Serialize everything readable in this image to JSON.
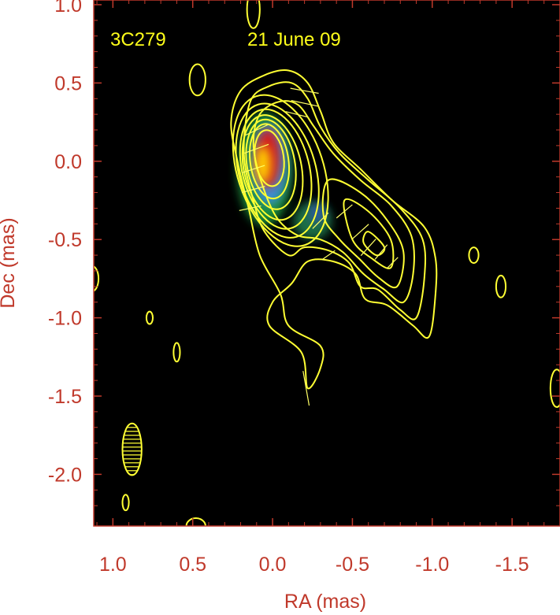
{
  "chart_data": {
    "type": "contour_map",
    "source_name": "3C279",
    "epoch": "21 June 09",
    "xlabel": "RA (mas)",
    "ylabel": "Dec (mas)",
    "xlim": [
      1.12,
      -1.8
    ],
    "ylim": [
      -2.33,
      1.03
    ],
    "xticks": [
      1.0,
      0.5,
      0.0,
      -0.5,
      -1.0,
      -1.5
    ],
    "xtick_labels": [
      "1.0",
      "0.5",
      "0.0",
      "-0.5",
      "-1.0",
      "-1.5"
    ],
    "yticks": [
      1.0,
      0.5,
      0.0,
      -0.5,
      -1.0,
      -1.5,
      -2.0
    ],
    "ytick_labels": [
      "1.0",
      "0.5",
      "0.0",
      "-0.5",
      "-1.0",
      "-1.5",
      "-2.0"
    ],
    "colors": {
      "background": "#000000",
      "axes": "#c0392b",
      "contours": "#ffff33",
      "annotation": "#ffff1a"
    },
    "intensity_blobs": [
      {
        "ra": 0.05,
        "dec": -0.05,
        "sx": 0.17,
        "sy": 0.36,
        "color": "#1a8c3a"
      },
      {
        "ra": -0.25,
        "dec": -0.38,
        "sx": 0.12,
        "sy": 0.12,
        "color": "#1a6e44"
      },
      {
        "ra": -0.28,
        "dec": -0.33,
        "sx": 0.05,
        "sy": 0.06,
        "color": "#2f56a8"
      },
      {
        "ra": 0.02,
        "dec": -0.02,
        "sx": 0.11,
        "sy": 0.26,
        "color": "#3a8fd6"
      },
      {
        "ra": 0.03,
        "dec": 0.02,
        "sx": 0.08,
        "sy": 0.19,
        "color": "#d11a1a"
      },
      {
        "ra": 0.06,
        "dec": -0.02,
        "sx": 0.05,
        "sy": 0.12,
        "color": "#ffcc00"
      }
    ],
    "core_contours": [
      {
        "ra": 0.02,
        "dec": 0.02,
        "a": 0.09,
        "b": 0.18,
        "angle": -8
      },
      {
        "ra": 0.02,
        "dec": 0.0,
        "a": 0.12,
        "b": 0.24,
        "angle": -8
      },
      {
        "ra": 0.01,
        "dec": -0.02,
        "a": 0.15,
        "b": 0.29,
        "angle": -10
      },
      {
        "ra": 0.0,
        "dec": -0.04,
        "a": 0.18,
        "b": 0.34,
        "angle": -12
      },
      {
        "ra": -0.02,
        "dec": -0.05,
        "a": 0.21,
        "b": 0.39,
        "angle": -14
      },
      {
        "ra": -0.03,
        "dec": -0.06,
        "a": 0.24,
        "b": 0.44,
        "angle": -16
      },
      {
        "ra": -0.05,
        "dec": -0.06,
        "a": 0.27,
        "b": 0.5,
        "angle": -18
      }
    ],
    "jet_contours": [
      [
        [
          0.2,
          0.45
        ],
        [
          0.05,
          0.55
        ],
        [
          -0.1,
          0.58
        ],
        [
          -0.22,
          0.5
        ],
        [
          -0.3,
          0.32
        ],
        [
          -0.38,
          0.12
        ],
        [
          -0.55,
          -0.05
        ],
        [
          -0.75,
          -0.25
        ],
        [
          -0.95,
          -0.42
        ],
        [
          -1.02,
          -0.62
        ],
        [
          -1.02,
          -0.85
        ],
        [
          -0.98,
          -1.12
        ],
        [
          -0.88,
          -1.05
        ],
        [
          -0.72,
          -0.92
        ],
        [
          -0.58,
          -0.88
        ],
        [
          -0.52,
          -0.72
        ],
        [
          -0.38,
          -0.64
        ],
        [
          -0.22,
          -0.64
        ],
        [
          -0.12,
          -0.78
        ],
        [
          0.0,
          -0.9
        ],
        [
          0.02,
          -1.05
        ],
        [
          -0.18,
          -1.22
        ],
        [
          -0.22,
          -1.45
        ],
        [
          -0.3,
          -1.32
        ],
        [
          -0.3,
          -1.18
        ],
        [
          -0.1,
          -1.05
        ],
        [
          -0.05,
          -0.85
        ],
        [
          0.08,
          -0.6
        ],
        [
          0.15,
          -0.3
        ],
        [
          0.22,
          0.0
        ],
        [
          0.26,
          0.25
        ]
      ],
      [
        [
          0.14,
          0.38
        ],
        [
          0.02,
          0.48
        ],
        [
          -0.12,
          0.5
        ],
        [
          -0.22,
          0.4
        ],
        [
          -0.3,
          0.22
        ],
        [
          -0.42,
          0.05
        ],
        [
          -0.6,
          -0.12
        ],
        [
          -0.8,
          -0.3
        ],
        [
          -0.94,
          -0.5
        ],
        [
          -0.95,
          -0.75
        ],
        [
          -0.9,
          -1.0
        ],
        [
          -0.8,
          -0.95
        ],
        [
          -0.66,
          -0.82
        ],
        [
          -0.55,
          -0.8
        ],
        [
          -0.48,
          -0.65
        ],
        [
          -0.35,
          -0.57
        ],
        [
          -0.2,
          -0.55
        ],
        [
          -0.1,
          -0.6
        ],
        [
          0.05,
          -0.45
        ],
        [
          0.12,
          -0.25
        ],
        [
          0.18,
          0.05
        ]
      ],
      [
        [
          0.08,
          0.3
        ],
        [
          -0.04,
          0.38
        ],
        [
          -0.16,
          0.36
        ],
        [
          -0.26,
          0.22
        ],
        [
          -0.38,
          0.05
        ],
        [
          -0.55,
          -0.12
        ],
        [
          -0.74,
          -0.28
        ],
        [
          -0.87,
          -0.48
        ],
        [
          -0.88,
          -0.72
        ],
        [
          -0.82,
          -0.9
        ],
        [
          -0.7,
          -0.82
        ],
        [
          -0.57,
          -0.72
        ],
        [
          -0.44,
          -0.58
        ],
        [
          -0.3,
          -0.5
        ],
        [
          -0.15,
          -0.47
        ],
        [
          -0.02,
          -0.35
        ],
        [
          0.08,
          -0.1
        ],
        [
          0.12,
          0.12
        ]
      ],
      [
        [
          -0.35,
          -0.12
        ],
        [
          -0.55,
          -0.2
        ],
        [
          -0.72,
          -0.38
        ],
        [
          -0.82,
          -0.58
        ],
        [
          -0.78,
          -0.8
        ],
        [
          -0.66,
          -0.74
        ],
        [
          -0.54,
          -0.62
        ],
        [
          -0.42,
          -0.5
        ],
        [
          -0.32,
          -0.35
        ]
      ],
      [
        [
          -0.45,
          -0.25
        ],
        [
          -0.6,
          -0.32
        ],
        [
          -0.74,
          -0.5
        ],
        [
          -0.74,
          -0.68
        ],
        [
          -0.62,
          -0.62
        ],
        [
          -0.5,
          -0.5
        ]
      ],
      [
        [
          -0.6,
          -0.45
        ],
        [
          -0.7,
          -0.55
        ],
        [
          -0.65,
          -0.6
        ],
        [
          -0.57,
          -0.52
        ]
      ]
    ],
    "isolated_contours": [
      {
        "ra": 1.13,
        "dec": -0.75,
        "a": 0.04,
        "b": 0.08
      },
      {
        "ra": 0.47,
        "dec": 0.52,
        "a": 0.05,
        "b": 0.1
      },
      {
        "ra": 0.12,
        "dec": 0.97,
        "a": 0.04,
        "b": 0.12
      },
      {
        "ra": 0.77,
        "dec": -1.0,
        "a": 0.02,
        "b": 0.04
      },
      {
        "ra": 0.6,
        "dec": -1.22,
        "a": 0.02,
        "b": 0.06
      },
      {
        "ra": 0.92,
        "dec": -2.18,
        "a": 0.02,
        "b": 0.05
      },
      {
        "ra": 0.48,
        "dec": -2.33,
        "a": 0.06,
        "b": 0.05
      },
      {
        "ra": -1.26,
        "dec": -0.6,
        "a": 0.03,
        "b": 0.05
      },
      {
        "ra": -1.43,
        "dec": -0.8,
        "a": 0.03,
        "b": 0.07
      },
      {
        "ra": -1.78,
        "dec": -1.45,
        "a": 0.04,
        "b": 0.12
      }
    ],
    "beam": {
      "ra": 0.88,
      "dec": -1.84,
      "bmaj": 0.33,
      "bmin": 0.12,
      "pa": 0
    },
    "polarization_vectors": [
      {
        "ra": -0.2,
        "dec": 0.45,
        "len": 0.18,
        "angle": 10
      },
      {
        "ra": -0.2,
        "dec": 0.37,
        "len": 0.17,
        "angle": 12
      },
      {
        "ra": -0.15,
        "dec": 0.3,
        "len": 0.14,
        "angle": 14
      },
      {
        "ra": 0.1,
        "dec": 0.2,
        "len": 0.16,
        "angle": -25
      },
      {
        "ra": 0.1,
        "dec": 0.08,
        "len": 0.16,
        "angle": -20
      },
      {
        "ra": 0.12,
        "dec": -0.05,
        "len": 0.15,
        "angle": -18
      },
      {
        "ra": 0.12,
        "dec": -0.18,
        "len": 0.15,
        "angle": -15
      },
      {
        "ra": 0.14,
        "dec": -0.3,
        "len": 0.14,
        "angle": -12
      },
      {
        "ra": -0.3,
        "dec": -0.38,
        "len": 0.14,
        "angle": -45
      },
      {
        "ra": -0.45,
        "dec": -0.32,
        "len": 0.13,
        "angle": -40
      },
      {
        "ra": -0.55,
        "dec": -0.45,
        "len": 0.14,
        "angle": -42
      },
      {
        "ra": -0.6,
        "dec": -0.55,
        "len": 0.14,
        "angle": -48
      },
      {
        "ra": -0.68,
        "dec": -0.58,
        "len": 0.12,
        "angle": -50
      },
      {
        "ra": -0.75,
        "dec": -0.65,
        "len": 0.1,
        "angle": -45
      },
      {
        "ra": -0.35,
        "dec": -0.6,
        "len": 0.1,
        "angle": -35
      },
      {
        "ra": -0.21,
        "dec": -1.45,
        "len": 0.22,
        "angle": 80
      }
    ]
  }
}
